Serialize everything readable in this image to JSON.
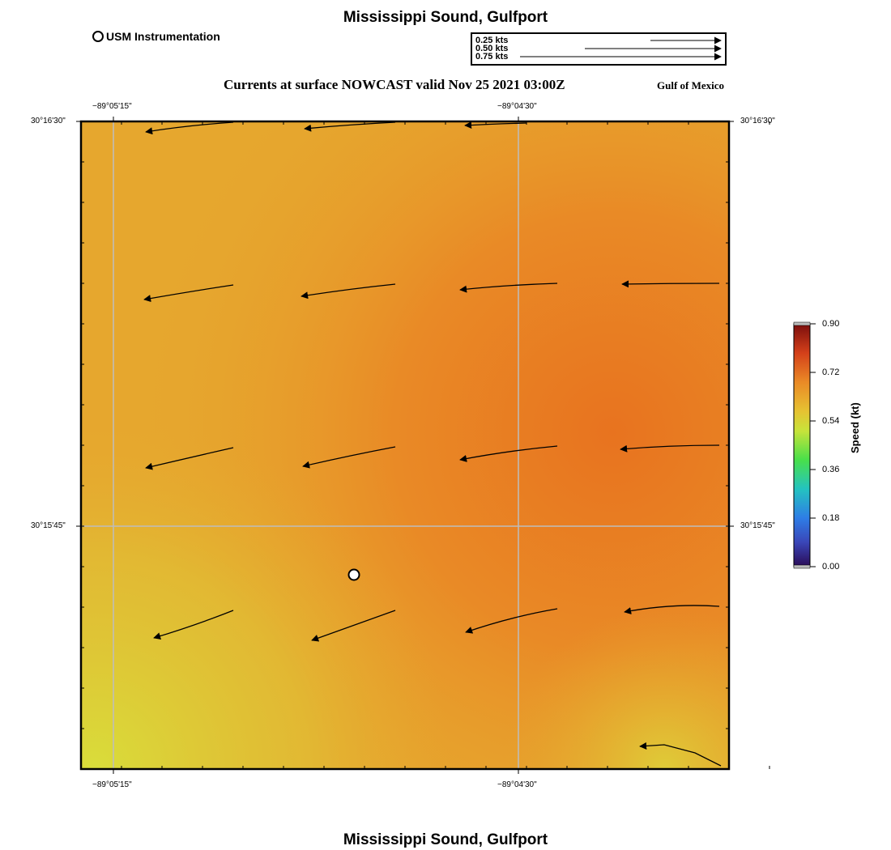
{
  "title_top": "Mississippi Sound, Gulfport",
  "title_bottom": "Mississippi Sound, Gulfport",
  "usm_label": "USM Instrumentation",
  "subtitle": "Currents at surface NOWCAST valid Nov 25 2021 03:00Z",
  "region": "Gulf of Mexico",
  "speed_legend": [
    "0.25 kts",
    "0.50 kts",
    "0.75 kts"
  ],
  "axes": {
    "lon_top": [
      "−89°05'15\"",
      "−89°04'30\""
    ],
    "lon_bottom": [
      "−89°05'15\"",
      "−89°04'30\""
    ],
    "lat_left": [
      "30°16'30\"",
      "30°15'45\""
    ],
    "lat_right": [
      "30°16'30\"",
      "30°15'45\""
    ]
  },
  "colorbar": {
    "title": "Speed (kt)",
    "ticks": [
      "0.90",
      "0.72",
      "0.54",
      "0.36",
      "0.18",
      "0.00"
    ]
  },
  "colors": {
    "field_orange": "#e98a2a",
    "field_yellow": "#d9d73a",
    "field_mid": "#e6a72e"
  }
}
